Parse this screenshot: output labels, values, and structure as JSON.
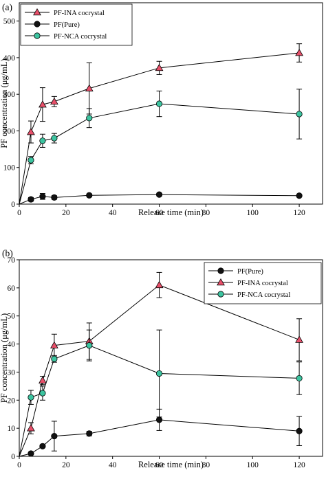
{
  "chart_data": [
    {
      "panel_label": "(a)",
      "type": "line",
      "xlabel": "Release time (min)",
      "ylabel": "PF concentration (μg/mL)",
      "xlim": [
        0,
        130
      ],
      "ylim": [
        0,
        550
      ],
      "xticks": [
        "0",
        "20",
        "40",
        "60",
        "80",
        "100",
        "120"
      ],
      "yticks": [
        "0",
        "100",
        "200",
        "300",
        "400",
        "500"
      ],
      "legend_position": "top-left",
      "x": [
        0,
        5,
        10,
        15,
        30,
        60,
        120
      ],
      "series": [
        {
          "name": "PF-INA cocrystal",
          "marker": "triangle",
          "color": "#e8506a",
          "values": [
            0,
            197,
            272,
            280,
            316,
            372,
            413
          ],
          "errors": [
            0,
            30,
            46,
            14,
            70,
            18,
            25
          ]
        },
        {
          "name": "PF(Pure)",
          "marker": "circle",
          "color": "#111111",
          "values": [
            0,
            13,
            21,
            18,
            24,
            26,
            23
          ],
          "errors": [
            0,
            5,
            8,
            5,
            4,
            4,
            3
          ]
        },
        {
          "name": "PF-NCA cocrystal",
          "marker": "circle",
          "color": "#3cc4a0",
          "values": [
            0,
            120,
            173,
            180,
            235,
            274,
            246
          ],
          "errors": [
            0,
            10,
            18,
            13,
            26,
            35,
            68
          ]
        }
      ],
      "legend_order": [
        0,
        1,
        2
      ]
    },
    {
      "panel_label": "(b)",
      "type": "line",
      "xlabel": "Release time (min)",
      "ylabel": "PF concentration (μg/mL)",
      "xlim": [
        0,
        130
      ],
      "ylim": [
        0,
        70
      ],
      "xticks": [
        "0",
        "20",
        "40",
        "60",
        "80",
        "100",
        "120"
      ],
      "yticks": [
        "0",
        "10",
        "20",
        "30",
        "40",
        "50",
        "60",
        "70"
      ],
      "legend_position": "top-right",
      "x": [
        0,
        5,
        10,
        15,
        30,
        60,
        120
      ],
      "series": [
        {
          "name": "PF(Pure)",
          "marker": "circle",
          "color": "#111111",
          "values": [
            0,
            1,
            3.6,
            7.2,
            8.1,
            13,
            9
          ],
          "errors": [
            0,
            0,
            0.5,
            5.3,
            0.8,
            3.8,
            5.2
          ]
        },
        {
          "name": "PF-INA cocrystal",
          "marker": "triangle",
          "color": "#e8506a",
          "values": [
            0,
            10,
            27,
            39.5,
            41,
            61,
            41.5
          ],
          "errors": [
            0,
            2,
            1.5,
            4,
            6.5,
            4.5,
            7.5
          ]
        },
        {
          "name": "PF-NCA cocrystal",
          "marker": "circle",
          "color": "#3cc4a0",
          "values": [
            0,
            21,
            22.5,
            34.7,
            39.5,
            29.5,
            27.8
          ],
          "errors": [
            0,
            2.5,
            2.5,
            1.2,
            5.5,
            15.5,
            5.8
          ]
        }
      ],
      "legend_order": [
        0,
        1,
        2
      ]
    }
  ]
}
